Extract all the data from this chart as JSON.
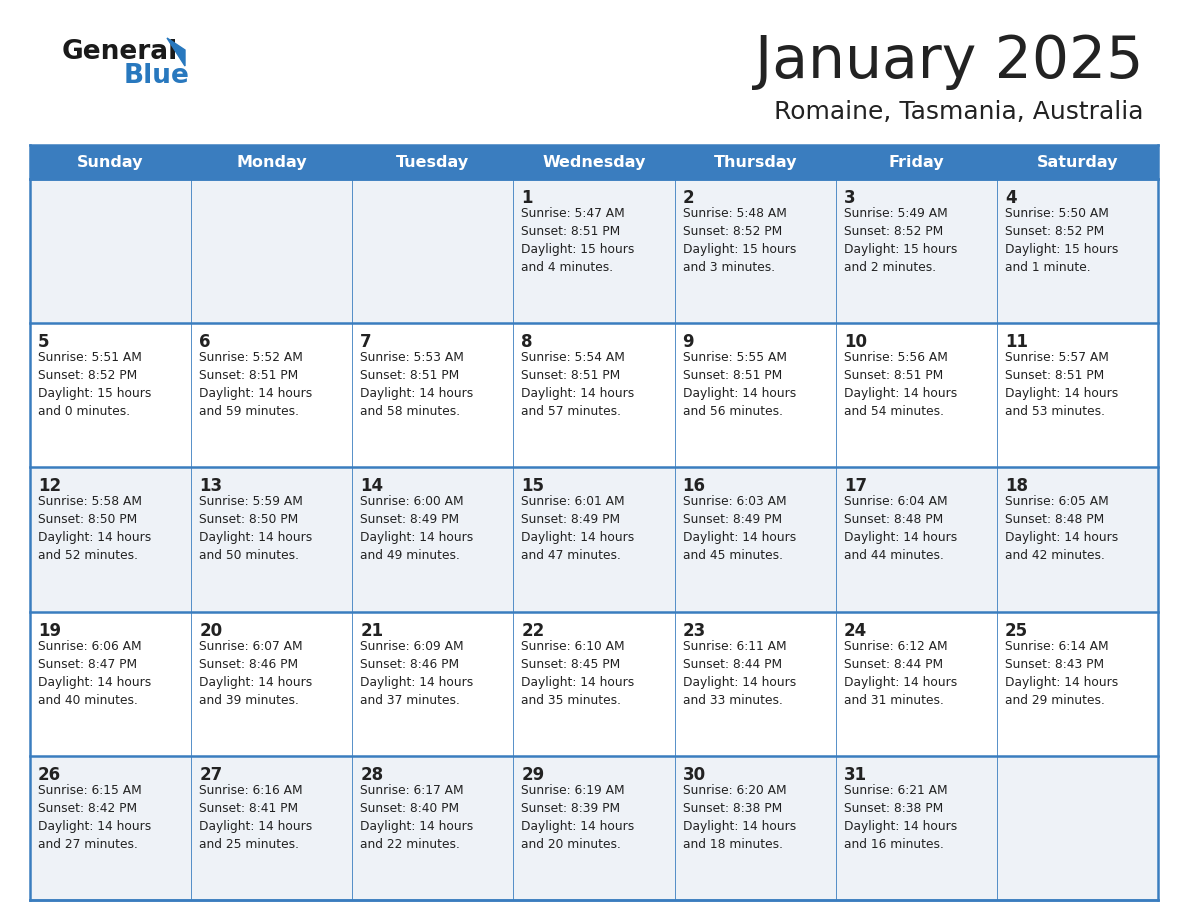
{
  "title": "January 2025",
  "subtitle": "Romaine, Tasmania, Australia",
  "header_color": "#3a7dbf",
  "header_text_color": "#ffffff",
  "row_bg_odd": "#eef2f7",
  "row_bg_even": "#ffffff",
  "border_color": "#3a7dbf",
  "text_color": "#222222",
  "days_of_week": [
    "Sunday",
    "Monday",
    "Tuesday",
    "Wednesday",
    "Thursday",
    "Friday",
    "Saturday"
  ],
  "calendar_data": [
    [
      {
        "day": null,
        "info": null
      },
      {
        "day": null,
        "info": null
      },
      {
        "day": null,
        "info": null
      },
      {
        "day": 1,
        "info": "Sunrise: 5:47 AM\nSunset: 8:51 PM\nDaylight: 15 hours\nand 4 minutes."
      },
      {
        "day": 2,
        "info": "Sunrise: 5:48 AM\nSunset: 8:52 PM\nDaylight: 15 hours\nand 3 minutes."
      },
      {
        "day": 3,
        "info": "Sunrise: 5:49 AM\nSunset: 8:52 PM\nDaylight: 15 hours\nand 2 minutes."
      },
      {
        "day": 4,
        "info": "Sunrise: 5:50 AM\nSunset: 8:52 PM\nDaylight: 15 hours\nand 1 minute."
      }
    ],
    [
      {
        "day": 5,
        "info": "Sunrise: 5:51 AM\nSunset: 8:52 PM\nDaylight: 15 hours\nand 0 minutes."
      },
      {
        "day": 6,
        "info": "Sunrise: 5:52 AM\nSunset: 8:51 PM\nDaylight: 14 hours\nand 59 minutes."
      },
      {
        "day": 7,
        "info": "Sunrise: 5:53 AM\nSunset: 8:51 PM\nDaylight: 14 hours\nand 58 minutes."
      },
      {
        "day": 8,
        "info": "Sunrise: 5:54 AM\nSunset: 8:51 PM\nDaylight: 14 hours\nand 57 minutes."
      },
      {
        "day": 9,
        "info": "Sunrise: 5:55 AM\nSunset: 8:51 PM\nDaylight: 14 hours\nand 56 minutes."
      },
      {
        "day": 10,
        "info": "Sunrise: 5:56 AM\nSunset: 8:51 PM\nDaylight: 14 hours\nand 54 minutes."
      },
      {
        "day": 11,
        "info": "Sunrise: 5:57 AM\nSunset: 8:51 PM\nDaylight: 14 hours\nand 53 minutes."
      }
    ],
    [
      {
        "day": 12,
        "info": "Sunrise: 5:58 AM\nSunset: 8:50 PM\nDaylight: 14 hours\nand 52 minutes."
      },
      {
        "day": 13,
        "info": "Sunrise: 5:59 AM\nSunset: 8:50 PM\nDaylight: 14 hours\nand 50 minutes."
      },
      {
        "day": 14,
        "info": "Sunrise: 6:00 AM\nSunset: 8:49 PM\nDaylight: 14 hours\nand 49 minutes."
      },
      {
        "day": 15,
        "info": "Sunrise: 6:01 AM\nSunset: 8:49 PM\nDaylight: 14 hours\nand 47 minutes."
      },
      {
        "day": 16,
        "info": "Sunrise: 6:03 AM\nSunset: 8:49 PM\nDaylight: 14 hours\nand 45 minutes."
      },
      {
        "day": 17,
        "info": "Sunrise: 6:04 AM\nSunset: 8:48 PM\nDaylight: 14 hours\nand 44 minutes."
      },
      {
        "day": 18,
        "info": "Sunrise: 6:05 AM\nSunset: 8:48 PM\nDaylight: 14 hours\nand 42 minutes."
      }
    ],
    [
      {
        "day": 19,
        "info": "Sunrise: 6:06 AM\nSunset: 8:47 PM\nDaylight: 14 hours\nand 40 minutes."
      },
      {
        "day": 20,
        "info": "Sunrise: 6:07 AM\nSunset: 8:46 PM\nDaylight: 14 hours\nand 39 minutes."
      },
      {
        "day": 21,
        "info": "Sunrise: 6:09 AM\nSunset: 8:46 PM\nDaylight: 14 hours\nand 37 minutes."
      },
      {
        "day": 22,
        "info": "Sunrise: 6:10 AM\nSunset: 8:45 PM\nDaylight: 14 hours\nand 35 minutes."
      },
      {
        "day": 23,
        "info": "Sunrise: 6:11 AM\nSunset: 8:44 PM\nDaylight: 14 hours\nand 33 minutes."
      },
      {
        "day": 24,
        "info": "Sunrise: 6:12 AM\nSunset: 8:44 PM\nDaylight: 14 hours\nand 31 minutes."
      },
      {
        "day": 25,
        "info": "Sunrise: 6:14 AM\nSunset: 8:43 PM\nDaylight: 14 hours\nand 29 minutes."
      }
    ],
    [
      {
        "day": 26,
        "info": "Sunrise: 6:15 AM\nSunset: 8:42 PM\nDaylight: 14 hours\nand 27 minutes."
      },
      {
        "day": 27,
        "info": "Sunrise: 6:16 AM\nSunset: 8:41 PM\nDaylight: 14 hours\nand 25 minutes."
      },
      {
        "day": 28,
        "info": "Sunrise: 6:17 AM\nSunset: 8:40 PM\nDaylight: 14 hours\nand 22 minutes."
      },
      {
        "day": 29,
        "info": "Sunrise: 6:19 AM\nSunset: 8:39 PM\nDaylight: 14 hours\nand 20 minutes."
      },
      {
        "day": 30,
        "info": "Sunrise: 6:20 AM\nSunset: 8:38 PM\nDaylight: 14 hours\nand 18 minutes."
      },
      {
        "day": 31,
        "info": "Sunrise: 6:21 AM\nSunset: 8:38 PM\nDaylight: 14 hours\nand 16 minutes."
      },
      {
        "day": null,
        "info": null
      }
    ]
  ],
  "logo_color_general": "#1a1a1a",
  "logo_color_blue": "#2878be",
  "fig_width": 11.88,
  "fig_height": 9.18,
  "dpi": 100
}
